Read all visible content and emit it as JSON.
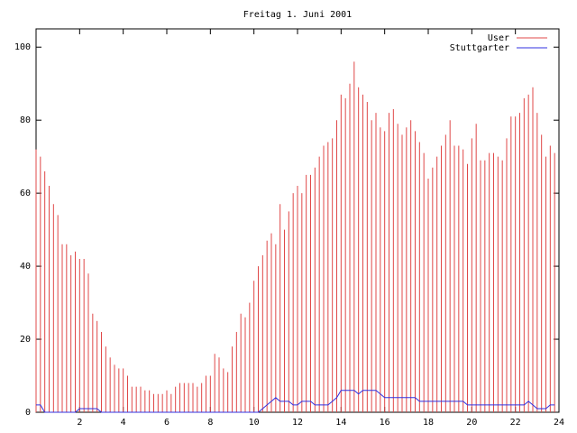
{
  "chart_data": {
    "type": "impulses",
    "title": "Freitag 1. Juni 2001",
    "x": [
      0,
      0.2,
      0.4,
      0.6,
      0.8,
      1,
      1.2,
      1.4,
      1.6,
      1.8,
      2,
      2.2,
      2.4,
      2.6,
      2.8,
      3,
      3.2,
      3.4,
      3.6,
      3.8,
      4,
      4.2,
      4.4,
      4.6,
      4.8,
      5,
      5.2,
      5.4,
      5.6,
      5.8,
      6,
      6.2,
      6.4,
      6.6,
      6.8,
      7,
      7.2,
      7.4,
      7.6,
      7.8,
      8,
      8.2,
      8.4,
      8.6,
      8.8,
      9,
      9.2,
      9.4,
      9.6,
      9.8,
      10,
      10.2,
      10.4,
      10.6,
      10.8,
      11,
      11.2,
      11.4,
      11.6,
      11.8,
      12,
      12.2,
      12.4,
      12.6,
      12.8,
      13,
      13.2,
      13.4,
      13.6,
      13.8,
      14,
      14.2,
      14.4,
      14.6,
      14.8,
      15,
      15.2,
      15.4,
      15.6,
      15.8,
      16,
      16.2,
      16.4,
      16.6,
      16.8,
      17,
      17.2,
      17.4,
      17.6,
      17.8,
      18,
      18.2,
      18.4,
      18.6,
      18.8,
      19,
      19.2,
      19.4,
      19.6,
      19.8,
      20,
      20.2,
      20.4,
      20.6,
      20.8,
      21,
      21.2,
      21.4,
      21.6,
      21.8,
      22,
      22.2,
      22.4,
      22.6,
      22.8,
      23,
      23.2,
      23.4,
      23.6,
      23.8
    ],
    "series": [
      {
        "name": "User",
        "color": "#e04848",
        "style": "impulses",
        "values": [
          72,
          70,
          66,
          62,
          57,
          54,
          46,
          46,
          43,
          44,
          42,
          42,
          38,
          27,
          25,
          22,
          18,
          15,
          13,
          12,
          12,
          10,
          7,
          7,
          7,
          6,
          6,
          5,
          5,
          5,
          6,
          5,
          7,
          8,
          8,
          8,
          8,
          7,
          8,
          10,
          10,
          16,
          15,
          12,
          11,
          18,
          22,
          27,
          26,
          30,
          36,
          40,
          43,
          47,
          49,
          46,
          57,
          50,
          55,
          60,
          62,
          60,
          65,
          65,
          67,
          70,
          73,
          74,
          75,
          80,
          87,
          86,
          90,
          96,
          89,
          87,
          85,
          80,
          82,
          78,
          77,
          82,
          83,
          79,
          76,
          78,
          80,
          77,
          74,
          71,
          64,
          67,
          70,
          73,
          76,
          80,
          73,
          73,
          72,
          68,
          75,
          79,
          69,
          69,
          71,
          71,
          70,
          69,
          75,
          81,
          81,
          82,
          86,
          87,
          89,
          82,
          76,
          70,
          73,
          71
        ]
      },
      {
        "name": "Stuttgarter",
        "color": "#3030e0",
        "style": "line",
        "values": [
          2,
          2,
          0,
          0,
          0,
          0,
          0,
          0,
          0,
          0,
          1,
          1,
          1,
          1,
          1,
          0,
          0,
          0,
          0,
          0,
          0,
          0,
          0,
          0,
          0,
          0,
          0,
          0,
          0,
          0,
          0,
          0,
          0,
          0,
          0,
          0,
          0,
          0,
          0,
          0,
          0,
          0,
          0,
          0,
          0,
          0,
          0,
          0,
          0,
          0,
          0,
          0,
          1,
          2,
          3,
          4,
          3,
          3,
          3,
          2,
          2,
          3,
          3,
          3,
          2,
          2,
          2,
          2,
          3,
          4,
          6,
          6,
          6,
          6,
          5,
          6,
          6,
          6,
          6,
          5,
          4,
          4,
          4,
          4,
          4,
          4,
          4,
          4,
          3,
          3,
          3,
          3,
          3,
          3,
          3,
          3,
          3,
          3,
          3,
          2,
          2,
          2,
          2,
          2,
          2,
          2,
          2,
          2,
          2,
          2,
          2,
          2,
          2,
          3,
          2,
          1,
          1,
          1,
          2,
          2
        ]
      }
    ],
    "xlim": [
      0,
      24
    ],
    "xticks": [
      2,
      4,
      6,
      8,
      10,
      12,
      14,
      16,
      18,
      20,
      22,
      24
    ],
    "ylim": [
      0,
      105
    ],
    "yticks": [
      0,
      20,
      40,
      60,
      80,
      100
    ],
    "legend": "top-right"
  }
}
